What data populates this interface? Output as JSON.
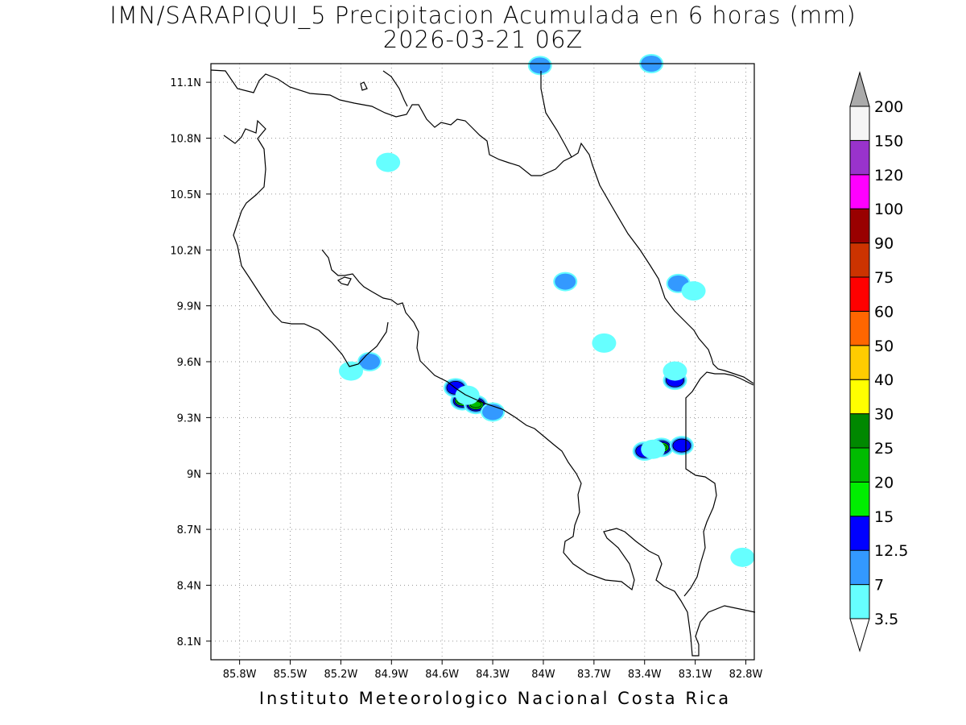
{
  "title_line1": "IMN/SARAPIQUI_5 Precipitacion Acumulada en 6 horas (mm)",
  "title_line2": "2026-03-21 06Z",
  "footer": "Instituto Meteorologico Nacional Costa Rica",
  "map": {
    "lon_range": [
      -85.97,
      -82.75
    ],
    "lat_range": [
      8.0,
      11.2
    ],
    "lon_ticks": [
      -85.8,
      -85.5,
      -85.2,
      -84.9,
      -84.6,
      -84.3,
      -84.0,
      -83.7,
      -83.4,
      -83.1,
      -82.8
    ],
    "lon_tick_labels": [
      "85.8W",
      "85.5W",
      "85.2W",
      "84.9W",
      "84.6W",
      "84.3W",
      "84W",
      "83.7W",
      "83.4W",
      "83.1W",
      "82.8W"
    ],
    "lat_ticks": [
      8.1,
      8.4,
      8.7,
      9.0,
      9.3,
      9.6,
      9.9,
      10.2,
      10.5,
      10.8,
      11.1
    ],
    "lat_tick_labels": [
      "8.1N",
      "8.4N",
      "8.7N",
      "9N",
      "9.3N",
      "9.6N",
      "9.9N",
      "10.2N",
      "10.5N",
      "10.8N",
      "11.1N"
    ],
    "grid": "dotted"
  },
  "colorbar": {
    "levels": [
      "3.5",
      "7",
      "12.5",
      "15",
      "20",
      "25",
      "30",
      "40",
      "50",
      "60",
      "75",
      "90",
      "100",
      "120",
      "150",
      "200"
    ],
    "colors": [
      "#66ffff",
      "#3399ff",
      "#0000ff",
      "#00ee00",
      "#00bb00",
      "#008800",
      "#ffff00",
      "#ffcc00",
      "#ff6600",
      "#ff0000",
      "#cc3300",
      "#990000",
      "#ff00ff",
      "#9933cc",
      "#f5f5f5",
      "#aaaaaa"
    ]
  },
  "precip_cells": [
    {
      "lon": -84.48,
      "lat": 9.39,
      "level": "30"
    },
    {
      "lon": -84.4,
      "lat": 9.37,
      "level": "20"
    },
    {
      "lon": -84.52,
      "lat": 9.46,
      "level": "12.5"
    },
    {
      "lon": -84.3,
      "lat": 9.33,
      "level": "7"
    },
    {
      "lon": -84.45,
      "lat": 9.42,
      "level": "3.5"
    },
    {
      "lon": -83.3,
      "lat": 9.14,
      "level": "20"
    },
    {
      "lon": -83.4,
      "lat": 9.12,
      "level": "12.5"
    },
    {
      "lon": -83.18,
      "lat": 9.15,
      "level": "12.5"
    },
    {
      "lon": -83.35,
      "lat": 9.13,
      "level": "3.5"
    },
    {
      "lon": -83.22,
      "lat": 9.5,
      "level": "12.5"
    },
    {
      "lon": -83.22,
      "lat": 9.55,
      "level": "3.5"
    },
    {
      "lon": -83.2,
      "lat": 10.02,
      "level": "7"
    },
    {
      "lon": -83.87,
      "lat": 10.03,
      "level": "7"
    },
    {
      "lon": -83.64,
      "lat": 9.7,
      "level": "3.5"
    },
    {
      "lon": -85.03,
      "lat": 9.6,
      "level": "7"
    },
    {
      "lon": -85.14,
      "lat": 9.55,
      "level": "3.5"
    },
    {
      "lon": -84.92,
      "lat": 10.67,
      "level": "3.5"
    },
    {
      "lon": -84.02,
      "lat": 11.19,
      "level": "7"
    },
    {
      "lon": -83.36,
      "lat": 11.2,
      "level": "7"
    },
    {
      "lon": -83.11,
      "lat": 9.98,
      "level": "3.5"
    },
    {
      "lon": -82.82,
      "lat": 8.55,
      "level": "3.5"
    }
  ]
}
